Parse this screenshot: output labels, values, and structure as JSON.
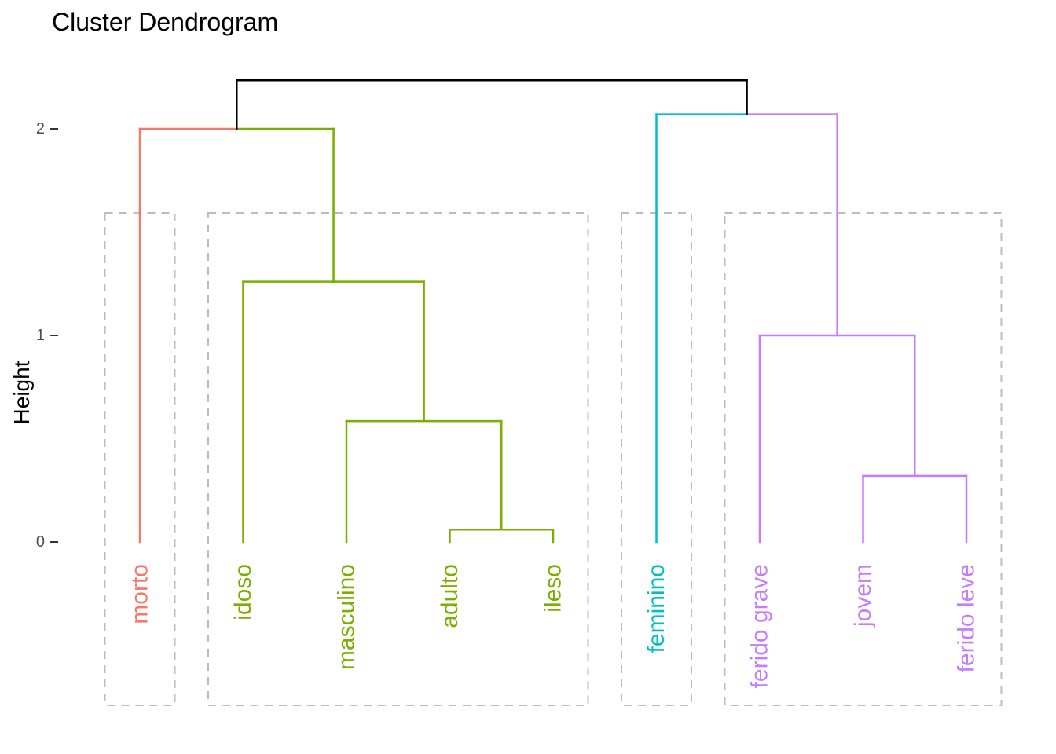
{
  "chart_data": {
    "type": "dendrogram",
    "title": "Cluster Dendrogram",
    "ylabel": "Height",
    "yticks": [
      0,
      1,
      2
    ],
    "ylim": [
      0,
      2.35
    ],
    "grid": false,
    "legend": "none",
    "palette": {
      "red": "#F8766D",
      "green": "#7CAE00",
      "cyan": "#00BFC4",
      "purple": "#C77CFF",
      "black": "#000000"
    },
    "axis_style": {
      "tick_text_color": "#4D4D4D",
      "tick_mark_color": "#333333"
    },
    "box_style": {
      "color": "#BCBCBC",
      "dash": [
        10,
        8
      ]
    },
    "leaves": [
      {
        "label": "morto",
        "cluster": "red"
      },
      {
        "label": "idoso",
        "cluster": "green"
      },
      {
        "label": "masculino",
        "cluster": "green"
      },
      {
        "label": "adulto",
        "cluster": "green"
      },
      {
        "label": "ileso",
        "cluster": "green"
      },
      {
        "label": "feminino",
        "cluster": "cyan"
      },
      {
        "label": "ferido grave",
        "cluster": "purple"
      },
      {
        "label": "jovem",
        "cluster": "purple"
      },
      {
        "label": "ferido leve",
        "cluster": "purple"
      }
    ],
    "merges": [
      {
        "id": "n1",
        "left": "adulto",
        "right": "ileso",
        "height": 0.06,
        "left_color": "green",
        "right_color": "green",
        "stem_color": "green"
      },
      {
        "id": "n2",
        "left": "masculino",
        "right": "n1",
        "height": 0.585,
        "left_color": "green",
        "right_color": "green",
        "stem_color": "green"
      },
      {
        "id": "n3",
        "left": "idoso",
        "right": "n2",
        "height": 1.26,
        "left_color": "green",
        "right_color": "green",
        "stem_color": "green"
      },
      {
        "id": "n4",
        "left": "morto",
        "right": "n3",
        "height": 2.0,
        "left_color": "red",
        "right_color": "green",
        "stem_color": "black"
      },
      {
        "id": "n5",
        "left": "jovem",
        "right": "ferido leve",
        "height": 0.32,
        "left_color": "purple",
        "right_color": "purple",
        "stem_color": "purple"
      },
      {
        "id": "n6",
        "left": "ferido grave",
        "right": "n5",
        "height": 1.0,
        "left_color": "purple",
        "right_color": "purple",
        "stem_color": "purple"
      },
      {
        "id": "n7",
        "left": "feminino",
        "right": "n6",
        "height": 2.07,
        "left_color": "cyan",
        "right_color": "purple",
        "stem_color": "black"
      },
      {
        "id": "n8",
        "left": "n4",
        "right": "n7",
        "height": 2.235,
        "left_color": "black",
        "right_color": "black",
        "stem_color": null
      }
    ],
    "cluster_boxes": [
      {
        "first_leaf": 0,
        "last_leaf": 0
      },
      {
        "first_leaf": 1,
        "last_leaf": 4
      },
      {
        "first_leaf": 5,
        "last_leaf": 5
      },
      {
        "first_leaf": 6,
        "last_leaf": 8
      }
    ]
  }
}
